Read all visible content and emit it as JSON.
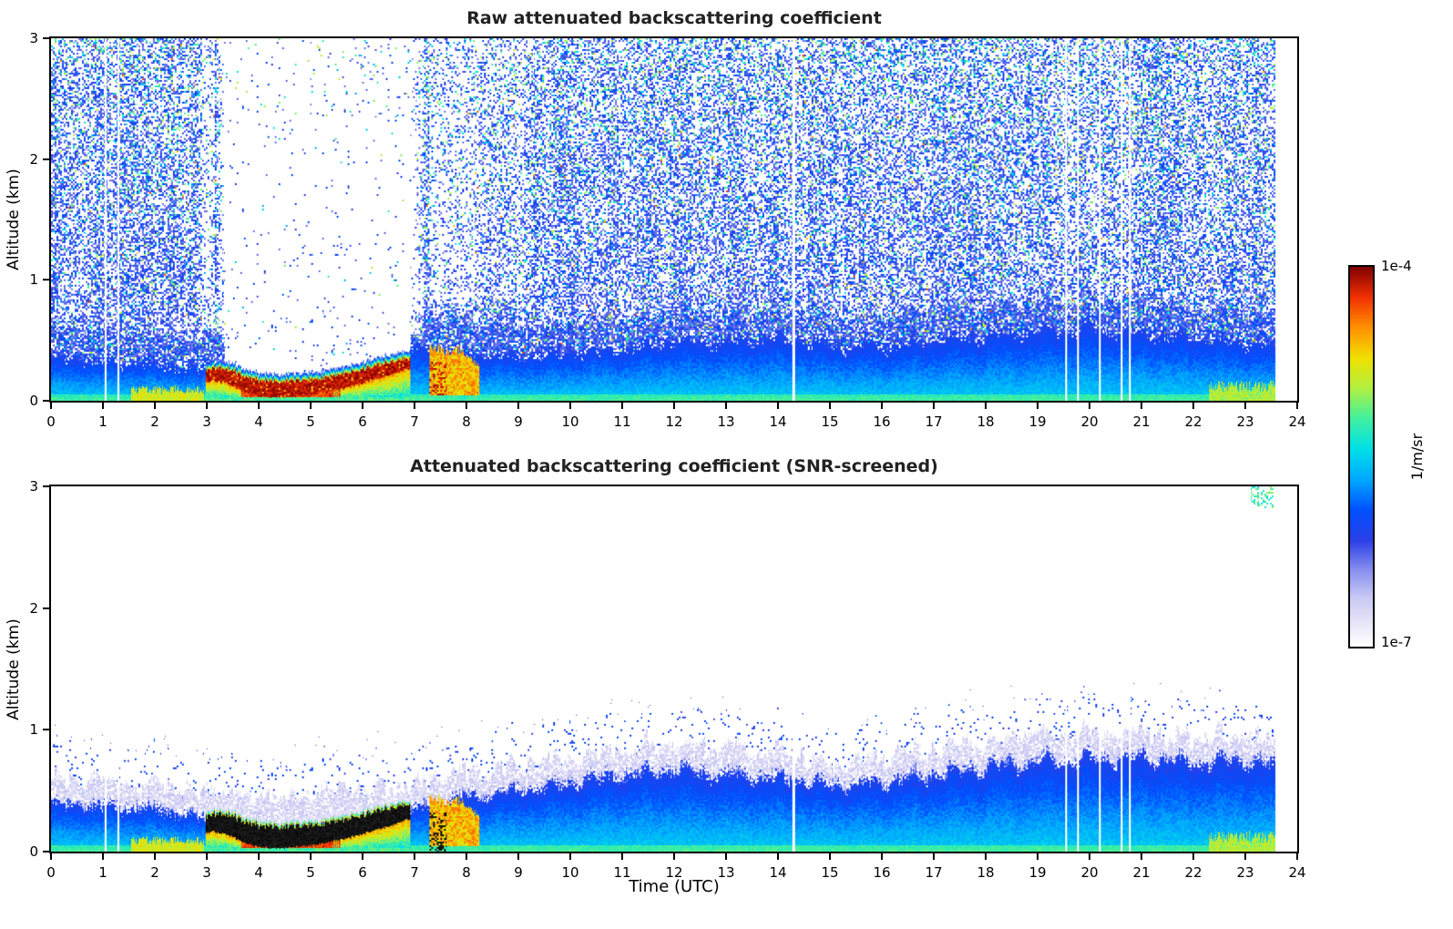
{
  "axes": {
    "x_label": "Time (UTC)",
    "y_label": "Altitude (km)",
    "x_range": [
      0,
      24
    ],
    "y_range": [
      0,
      3
    ],
    "x_ticks": [
      0,
      1,
      2,
      3,
      4,
      5,
      6,
      7,
      8,
      9,
      10,
      11,
      12,
      13,
      14,
      15,
      16,
      17,
      18,
      19,
      20,
      21,
      22,
      23,
      24
    ],
    "y_ticks": [
      0,
      1,
      2,
      3
    ]
  },
  "colorbar": {
    "max_label": "1e-4",
    "min_label": "1e-7",
    "units_label": "1/m/sr",
    "scale": "log",
    "stops": [
      [
        0.0,
        "#ffffff"
      ],
      [
        0.06,
        "#e8e6f8"
      ],
      [
        0.13,
        "#c8c8f4"
      ],
      [
        0.2,
        "#8890ee"
      ],
      [
        0.28,
        "#2a3fe8"
      ],
      [
        0.36,
        "#0050ff"
      ],
      [
        0.44,
        "#00a8ff"
      ],
      [
        0.52,
        "#00e0e8"
      ],
      [
        0.6,
        "#40f0a0"
      ],
      [
        0.68,
        "#b0f040"
      ],
      [
        0.76,
        "#f0e000"
      ],
      [
        0.84,
        "#ff9000"
      ],
      [
        0.92,
        "#f03000"
      ],
      [
        1.0,
        "#800000"
      ]
    ]
  },
  "chart_data": [
    {
      "id": "raw",
      "type": "heatmap",
      "style": "raw",
      "title": "Raw attenuated backscattering coefficient",
      "xlabel": "",
      "ylabel": "Altitude (km)",
      "x_range": [
        0,
        24
      ],
      "y_range": [
        0,
        3
      ],
      "value_range_labels": [
        "1e-7",
        "1e-4"
      ],
      "features": {
        "data_end": 23.58,
        "missing_times": [
          1.05,
          1.3,
          14.3,
          19.55,
          19.78,
          20.2,
          20.62,
          20.78
        ],
        "missing_halfwidth": 0.022,
        "bl_top": {
          "t": [
            0,
            1,
            2,
            2.9,
            3.1,
            3.6,
            4.5,
            5.5,
            6.5,
            6.9,
            7.2,
            7.6,
            8,
            9,
            10,
            11,
            12,
            13,
            14,
            15,
            16,
            17,
            18,
            19,
            20,
            21,
            22,
            23,
            23.58
          ],
          "h": [
            0.4,
            0.38,
            0.36,
            0.32,
            0.48,
            0.5,
            0.47,
            0.51,
            0.54,
            0.5,
            0.47,
            0.49,
            0.44,
            0.42,
            0.45,
            0.48,
            0.55,
            0.55,
            0.57,
            0.52,
            0.5,
            0.55,
            0.6,
            0.63,
            0.66,
            0.62,
            0.58,
            0.54,
            0.5
          ]
        },
        "cloud": {
          "t0": 2.98,
          "t1": 6.92,
          "base": {
            "t": [
              2.98,
              3.1,
              3.3,
              3.6,
              3.9,
              4.2,
              4.5,
              5.0,
              5.4,
              5.8,
              6.2,
              6.6,
              6.92
            ],
            "h": [
              0.15,
              0.17,
              0.15,
              0.1,
              0.05,
              0.03,
              0.03,
              0.05,
              0.08,
              0.12,
              0.17,
              0.22,
              0.27
            ]
          },
          "thickness": {
            "t": [
              2.98,
              3.5,
              4.5,
              5.5,
              6.5,
              6.92
            ],
            "h": [
              0.1,
              0.13,
              0.13,
              0.12,
              0.11,
              0.09
            ]
          }
        },
        "plume": {
          "t0": 7.28,
          "t1": 8.25,
          "top": {
            "t": [
              7.28,
              7.4,
              7.6,
              7.8,
              8.0,
              8.25
            ],
            "h": [
              0.42,
              0.45,
              0.4,
              0.43,
              0.38,
              0.3
            ]
          }
        },
        "surface_layers": [
          {
            "t0": 1.55,
            "t1": 2.95,
            "depth": 0.09,
            "v": 0.72
          },
          {
            "t0": 22.3,
            "t1": 23.58,
            "depth": 0.12,
            "v": 0.68
          }
        ],
        "attenuation_void": {
          "t0": 3.35,
          "t1": 6.92
        }
      }
    },
    {
      "id": "screened",
      "type": "heatmap",
      "style": "screened",
      "title": "Attenuated backscattering coefficient (SNR-screened)",
      "xlabel": "Time (UTC)",
      "ylabel": "Altitude (km)",
      "x_range": [
        0,
        24
      ],
      "y_range": [
        0,
        3
      ],
      "value_range_labels": [
        "1e-7",
        "1e-4"
      ],
      "features": {
        "data_end": 23.58,
        "missing_times": [
          1.05,
          1.3,
          14.3,
          19.55,
          19.78,
          20.2,
          20.62,
          20.78
        ],
        "missing_halfwidth": 0.022,
        "bl_top": {
          "t": [
            0,
            1,
            2,
            2.9,
            3.2,
            4,
            5,
            6,
            6.8,
            7.2,
            7.6,
            8,
            8.5,
            9,
            10,
            11,
            12,
            13,
            14,
            15,
            16,
            17,
            18,
            19,
            20,
            21,
            22,
            23,
            23.58
          ],
          "h": [
            0.44,
            0.42,
            0.4,
            0.34,
            0.33,
            0.31,
            0.33,
            0.36,
            0.38,
            0.42,
            0.46,
            0.5,
            0.52,
            0.55,
            0.61,
            0.68,
            0.72,
            0.68,
            0.66,
            0.6,
            0.62,
            0.68,
            0.75,
            0.79,
            0.81,
            0.82,
            0.78,
            0.8,
            0.76
          ]
        },
        "cloud": {
          "t0": 2.98,
          "t1": 6.92,
          "base": {
            "t": [
              2.98,
              3.1,
              3.3,
              3.6,
              3.9,
              4.2,
              4.5,
              5.0,
              5.4,
              5.8,
              6.2,
              6.6,
              6.92
            ],
            "h": [
              0.15,
              0.17,
              0.15,
              0.1,
              0.05,
              0.03,
              0.03,
              0.05,
              0.08,
              0.12,
              0.17,
              0.22,
              0.27
            ]
          },
          "thickness": {
            "t": [
              2.98,
              3.5,
              4.5,
              5.5,
              6.5,
              6.92
            ],
            "h": [
              0.1,
              0.13,
              0.13,
              0.12,
              0.11,
              0.09
            ]
          }
        },
        "plume": {
          "t0": 7.28,
          "t1": 8.25,
          "top": {
            "t": [
              7.28,
              7.4,
              7.6,
              7.8,
              8.0,
              8.25
            ],
            "h": [
              0.42,
              0.45,
              0.4,
              0.43,
              0.38,
              0.3
            ]
          }
        },
        "surface_layers": [
          {
            "t0": 1.55,
            "t1": 2.95,
            "depth": 0.09,
            "v": 0.72
          },
          {
            "t0": 22.3,
            "t1": 23.58,
            "depth": 0.12,
            "v": 0.68
          }
        ],
        "green_patch": {
          "t0": 23.1,
          "t1": 23.55,
          "a0": 2.82,
          "a1": 3.0
        }
      }
    }
  ]
}
